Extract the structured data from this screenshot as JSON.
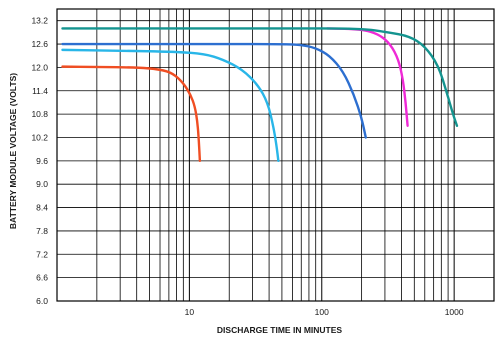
{
  "chart_data": {
    "type": "line",
    "title": "",
    "xlabel": "DISCHARGE TIME IN MINUTES",
    "ylabel": "BATTERY MODULE VOLTAGE (VOLTS)",
    "x_scale": "log",
    "xlim": [
      1,
      2000
    ],
    "ylim": [
      6.0,
      13.5
    ],
    "x_ticks": [
      {
        "value": 10,
        "label": "10"
      },
      {
        "value": 100,
        "label": "100"
      },
      {
        "value": 1000,
        "label": "1000"
      }
    ],
    "y_ticks": [
      {
        "value": 6.0,
        "label": "6.0"
      },
      {
        "value": 6.6,
        "label": "6.6"
      },
      {
        "value": 7.2,
        "label": "7.2"
      },
      {
        "value": 7.8,
        "label": "7.8"
      },
      {
        "value": 8.4,
        "label": "8.4"
      },
      {
        "value": 9.0,
        "label": "9.0"
      },
      {
        "value": 9.6,
        "label": "9.6"
      },
      {
        "value": 10.2,
        "label": "10.2"
      },
      {
        "value": 10.8,
        "label": "10.8"
      },
      {
        "value": 11.4,
        "label": "11.4"
      },
      {
        "value": 12.0,
        "label": "12.0"
      },
      {
        "value": 12.6,
        "label": "12.6"
      },
      {
        "value": 13.2,
        "label": "13.2"
      }
    ],
    "grid": true,
    "series": [
      {
        "color": "#f04e23",
        "points": [
          [
            1.1,
            12.02
          ],
          [
            2,
            12.01
          ],
          [
            4,
            12.0
          ],
          [
            6,
            11.95
          ],
          [
            7.5,
            11.85
          ],
          [
            9,
            11.6
          ],
          [
            10.2,
            11.3
          ],
          [
            11,
            11.0
          ],
          [
            11.5,
            10.6
          ],
          [
            11.8,
            10.1
          ],
          [
            12,
            9.6
          ]
        ]
      },
      {
        "color": "#29b6e8",
        "points": [
          [
            1.1,
            12.45
          ],
          [
            3,
            12.43
          ],
          [
            8,
            12.4
          ],
          [
            13,
            12.35
          ],
          [
            18,
            12.2
          ],
          [
            25,
            11.95
          ],
          [
            33,
            11.55
          ],
          [
            39,
            11.1
          ],
          [
            43,
            10.5
          ],
          [
            45.5,
            10.0
          ],
          [
            47,
            9.6
          ]
        ]
      },
      {
        "color": "#2d6fd0",
        "points": [
          [
            1.1,
            12.6
          ],
          [
            10,
            12.6
          ],
          [
            50,
            12.6
          ],
          [
            70,
            12.58
          ],
          [
            90,
            12.5
          ],
          [
            115,
            12.3
          ],
          [
            145,
            11.9
          ],
          [
            175,
            11.3
          ],
          [
            200,
            10.7
          ],
          [
            215,
            10.2
          ]
        ]
      },
      {
        "color": "#ef2ad6",
        "points": [
          [
            110,
            13.0
          ],
          [
            200,
            12.98
          ],
          [
            270,
            12.85
          ],
          [
            330,
            12.6
          ],
          [
            380,
            12.2
          ],
          [
            410,
            11.7
          ],
          [
            430,
            11.1
          ],
          [
            445,
            10.5
          ]
        ]
      },
      {
        "color": "#14948f",
        "points": [
          [
            1.1,
            13.0
          ],
          [
            50,
            13.0
          ],
          [
            200,
            13.0
          ],
          [
            320,
            12.9
          ],
          [
            460,
            12.8
          ],
          [
            600,
            12.55
          ],
          [
            760,
            12.05
          ],
          [
            880,
            11.35
          ],
          [
            980,
            10.8
          ],
          [
            1050,
            10.5
          ]
        ]
      }
    ]
  }
}
